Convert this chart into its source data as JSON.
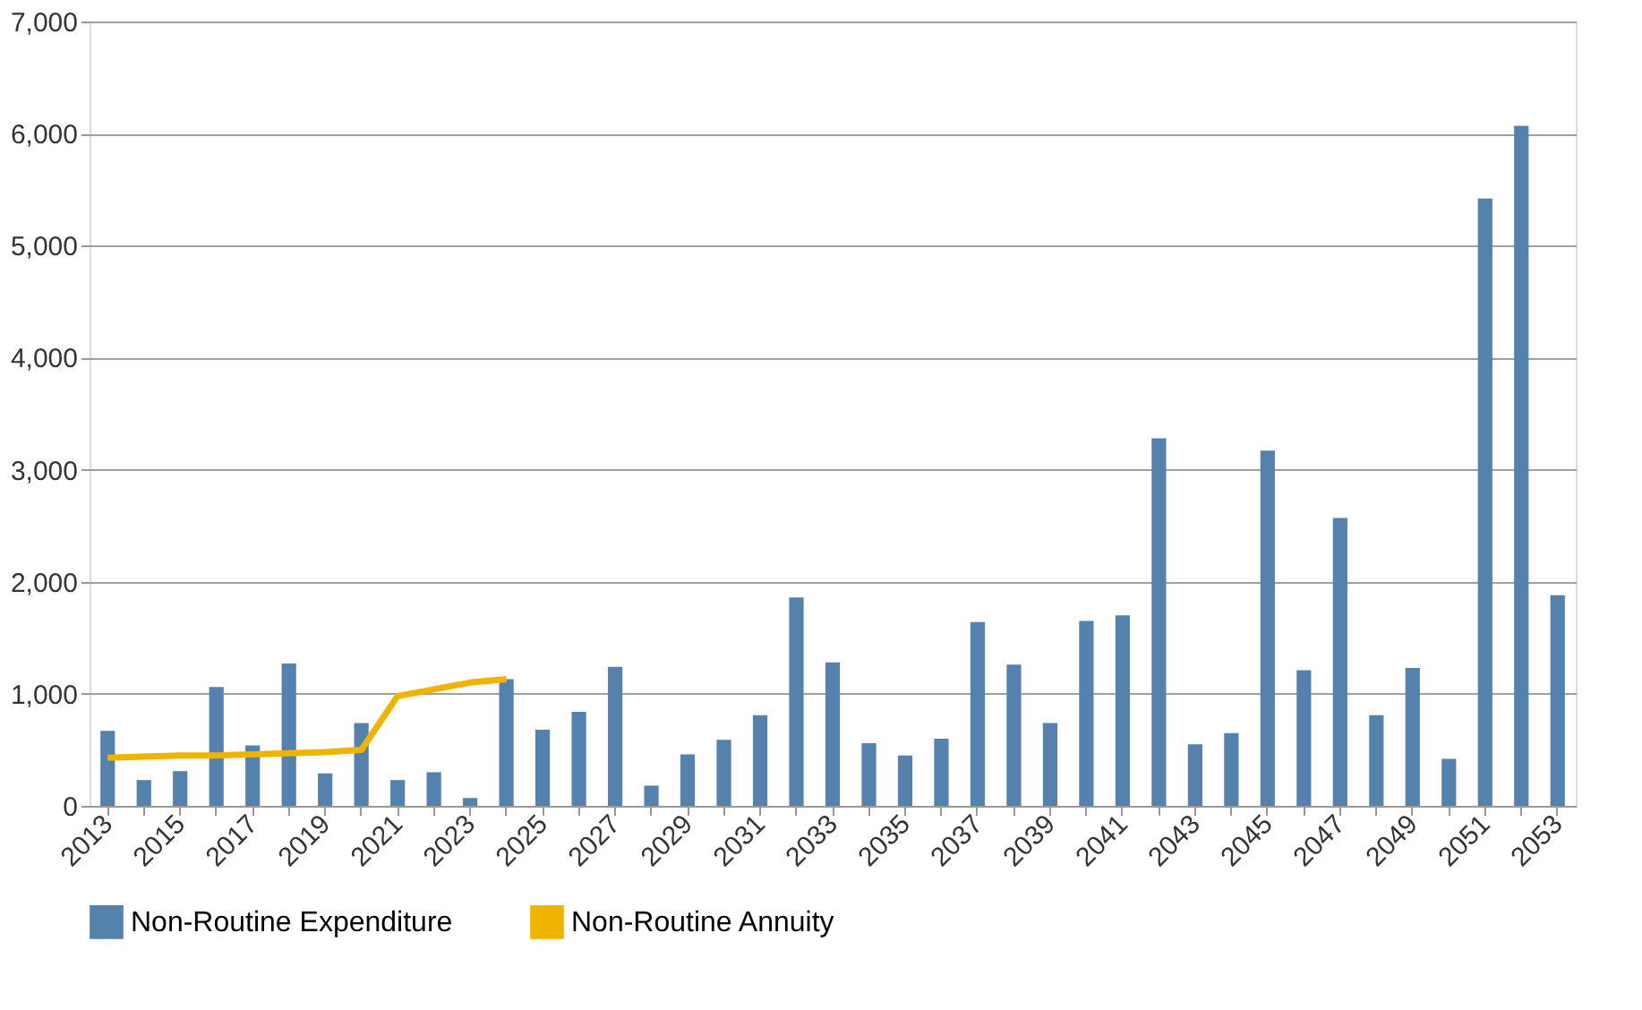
{
  "chart_data": {
    "type": "bar",
    "categories": [
      "2013",
      null,
      "2015",
      null,
      "2017",
      null,
      "2019",
      null,
      "2021",
      null,
      "2023",
      null,
      "2025",
      null,
      "2027",
      null,
      "2029",
      null,
      "2031",
      null,
      "2033",
      null,
      "2035",
      null,
      "2037",
      null,
      "2039",
      null,
      "2041",
      null,
      "2043",
      null,
      "2045",
      null,
      "2047",
      null,
      "2049",
      null,
      "2051",
      null,
      "2053"
    ],
    "series": [
      {
        "name": "Non-Routine Expenditure",
        "color": "#5581ad",
        "values": [
          670,
          230,
          310,
          1060,
          540,
          1270,
          290,
          740,
          230,
          300,
          70,
          1130,
          680,
          840,
          1240,
          180,
          460,
          590,
          810,
          1860,
          1280,
          560,
          450,
          600,
          1640,
          1260,
          740,
          1650,
          1700,
          3280,
          550,
          650,
          3170,
          1210,
          2570,
          810,
          1230,
          420,
          5420,
          6070,
          1880
        ]
      },
      {
        "name": "Non-Routine Annuity",
        "type": "line",
        "color": "#f0b400",
        "line_style": "solid",
        "values": [
          430,
          440,
          450,
          450,
          460,
          470,
          480,
          500,
          980,
          1040,
          1100,
          1130,
          null,
          null,
          null,
          null,
          null,
          null,
          null,
          null,
          null,
          null,
          null,
          null,
          null,
          null,
          null,
          null,
          null,
          null,
          null,
          null,
          null,
          null,
          null,
          null,
          null,
          null,
          null,
          null,
          null
        ]
      }
    ],
    "ylim": [
      0,
      7000
    ],
    "yticks": [
      {
        "value": 0,
        "label": "0"
      },
      {
        "value": 1000,
        "label": "1,000"
      },
      {
        "value": 2000,
        "label": "2,000"
      },
      {
        "value": 3000,
        "label": "3,000"
      },
      {
        "value": 4000,
        "label": "4,000"
      },
      {
        "value": 5000,
        "label": "5,000"
      },
      {
        "value": 6000,
        "label": "6,000"
      },
      {
        "value": 7000,
        "label": "7,000"
      }
    ],
    "grid": "y",
    "legend": "bottom",
    "marker": "none"
  }
}
